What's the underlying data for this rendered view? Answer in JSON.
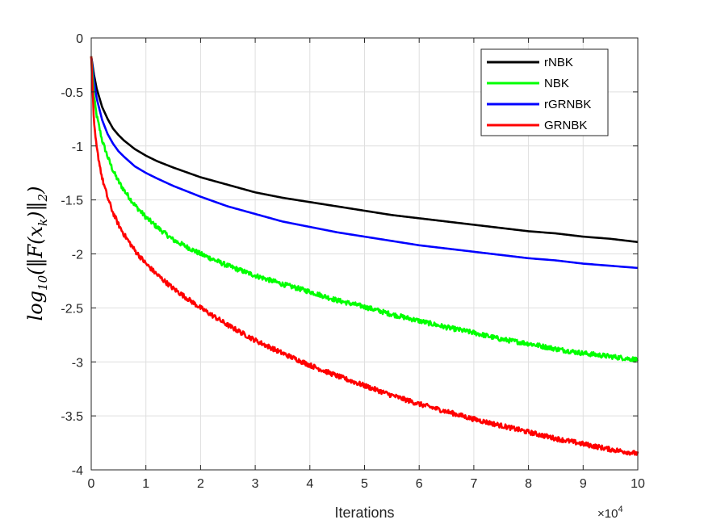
{
  "chart_data": {
    "type": "line",
    "xlabel": "Iterations",
    "ylabel": "log10(||F(x_k)||_2)",
    "ylabel_parts": {
      "base": "log",
      "sub": "10",
      "open": "(‖F(x",
      "k": "k",
      "close": ")‖",
      "close_sub": "2",
      "end": ")"
    },
    "x_multiplier_text": "×10",
    "x_multiplier_exp": "4",
    "xlim": [
      0,
      100000
    ],
    "ylim": [
      -4,
      0
    ],
    "x_ticks": [
      0,
      10000,
      20000,
      30000,
      40000,
      50000,
      60000,
      70000,
      80000,
      90000,
      100000
    ],
    "x_tick_labels": [
      "0",
      "1",
      "2",
      "3",
      "4",
      "5",
      "6",
      "7",
      "8",
      "9",
      "10"
    ],
    "y_ticks": [
      0,
      -0.5,
      -1,
      -1.5,
      -2,
      -2.5,
      -3,
      -3.5,
      -4
    ],
    "y_tick_labels": [
      "0",
      "-0.5",
      "-1",
      "-1.5",
      "-2",
      "-2.5",
      "-3",
      "-3.5",
      "-4"
    ],
    "grid": true,
    "legend_position": "top-right",
    "x": [
      0,
      500,
      1000,
      2000,
      3000,
      4000,
      5000,
      6000,
      8000,
      10000,
      12000,
      15000,
      20000,
      25000,
      30000,
      35000,
      40000,
      45000,
      50000,
      55000,
      60000,
      65000,
      70000,
      75000,
      80000,
      85000,
      90000,
      95000,
      100000
    ],
    "series": [
      {
        "name": "rNBK",
        "color": "#000000",
        "noise": 0,
        "values": [
          -0.17,
          -0.34,
          -0.47,
          -0.64,
          -0.75,
          -0.84,
          -0.9,
          -0.95,
          -1.03,
          -1.09,
          -1.14,
          -1.2,
          -1.29,
          -1.36,
          -1.43,
          -1.48,
          -1.52,
          -1.56,
          -1.6,
          -1.64,
          -1.67,
          -1.7,
          -1.73,
          -1.76,
          -1.79,
          -1.81,
          -1.84,
          -1.86,
          -1.89
        ]
      },
      {
        "name": "NBK",
        "color": "#00ff00",
        "noise": 0.022,
        "values": [
          -0.17,
          -0.55,
          -0.72,
          -0.95,
          -1.1,
          -1.23,
          -1.33,
          -1.41,
          -1.55,
          -1.66,
          -1.75,
          -1.87,
          -2.0,
          -2.11,
          -2.2,
          -2.28,
          -2.35,
          -2.43,
          -2.49,
          -2.56,
          -2.62,
          -2.68,
          -2.73,
          -2.79,
          -2.83,
          -2.88,
          -2.92,
          -2.95,
          -2.98
        ]
      },
      {
        "name": "rGRNBK",
        "color": "#0000ff",
        "noise": 0,
        "values": [
          -0.17,
          -0.4,
          -0.56,
          -0.76,
          -0.89,
          -0.98,
          -1.05,
          -1.1,
          -1.19,
          -1.25,
          -1.3,
          -1.37,
          -1.47,
          -1.56,
          -1.63,
          -1.7,
          -1.75,
          -1.8,
          -1.84,
          -1.88,
          -1.92,
          -1.95,
          -1.98,
          -2.01,
          -2.04,
          -2.06,
          -2.09,
          -2.11,
          -2.13
        ]
      },
      {
        "name": "GRNBK",
        "color": "#ff0000",
        "noise": 0.022,
        "values": [
          -0.17,
          -0.8,
          -1.02,
          -1.3,
          -1.48,
          -1.62,
          -1.73,
          -1.82,
          -1.97,
          -2.09,
          -2.19,
          -2.32,
          -2.5,
          -2.66,
          -2.8,
          -2.92,
          -3.03,
          -3.13,
          -3.22,
          -3.31,
          -3.39,
          -3.46,
          -3.53,
          -3.59,
          -3.65,
          -3.71,
          -3.76,
          -3.81,
          -3.85
        ]
      }
    ]
  }
}
